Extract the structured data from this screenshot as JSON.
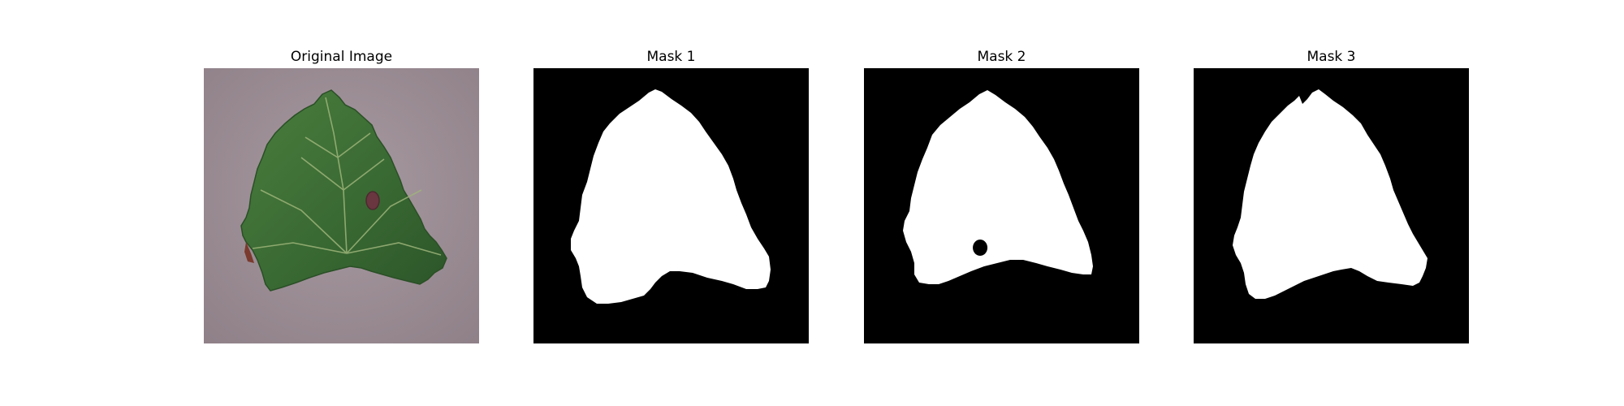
{
  "figure": {
    "panels": [
      {
        "title": "Original Image",
        "kind": "photo"
      },
      {
        "title": "Mask 1",
        "kind": "mask"
      },
      {
        "title": "Mask 2",
        "kind": "mask"
      },
      {
        "title": "Mask 3",
        "kind": "mask"
      }
    ]
  },
  "colors": {
    "background": "#ffffff",
    "mask_background": "#000000",
    "mask_foreground": "#ffffff",
    "surface": "#9f8f97",
    "leaf_dark": "#2f5a2c",
    "leaf_mid": "#3f7337",
    "leaf_vein": "#9db47a",
    "lesion": "#6a3640"
  }
}
